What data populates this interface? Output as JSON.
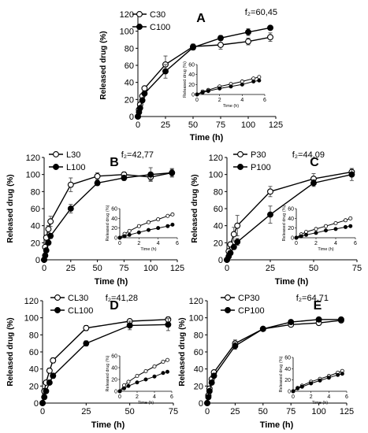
{
  "chart_data": [
    {
      "type": "line",
      "panel": "A",
      "f2": "f₂=60,45",
      "xlabel": "Time (h)",
      "ylabel": "Released drug (%)",
      "xlim": [
        0,
        125
      ],
      "ylim": [
        0,
        120
      ],
      "xticks": [
        "0",
        "25",
        "50",
        "75",
        "100",
        "125"
      ],
      "yticks": [
        "0",
        "20",
        "40",
        "60",
        "80",
        "100",
        "120"
      ],
      "legend": "top-left",
      "series": [
        {
          "name": "C30",
          "marker": "open",
          "x": [
            0,
            1,
            2,
            4,
            6,
            25,
            50,
            75,
            100,
            120
          ],
          "y": [
            0,
            8,
            14,
            24,
            33,
            61,
            82,
            84,
            88,
            93
          ],
          "err": [
            0,
            1,
            1,
            2,
            2,
            10,
            3,
            5,
            4,
            5
          ]
        },
        {
          "name": "C100",
          "marker": "filled",
          "x": [
            0,
            1,
            2,
            4,
            6,
            25,
            50,
            75,
            100,
            120
          ],
          "y": [
            0,
            5,
            10,
            19,
            27,
            53,
            81,
            92,
            99,
            104
          ],
          "err": [
            0,
            1,
            1,
            2,
            2,
            8,
            3,
            3,
            4,
            2
          ]
        }
      ],
      "inset": {
        "xlabel": "Time (h)",
        "ylabel": "Released drug (%)",
        "xlim": [
          0,
          6
        ],
        "ylim": [
          0,
          60
        ],
        "xticks": [
          "0",
          "2",
          "4",
          "6"
        ],
        "yticks": [
          "0",
          "20",
          "40",
          "60"
        ],
        "series": [
          {
            "name": "C30",
            "x": [
              0,
              0.5,
              1,
              2,
              3,
              4,
              5,
              5.5
            ],
            "y": [
              0,
              6,
              9,
              16,
              21,
              26,
              32,
              35
            ]
          },
          {
            "name": "C100",
            "x": [
              0,
              0.5,
              1,
              2,
              3,
              4,
              5,
              5.5
            ],
            "y": [
              0,
              4,
              7,
              12,
              16,
              20,
              26,
              28
            ]
          }
        ]
      }
    },
    {
      "type": "line",
      "panel": "B",
      "f2": "f₂=42,77",
      "xlabel": "Time (h)",
      "ylabel": "Released drug (%)",
      "xlim": [
        0,
        125
      ],
      "ylim": [
        0,
        120
      ],
      "xticks": [
        "0",
        "25",
        "50",
        "75",
        "100",
        "125"
      ],
      "yticks": [
        "0",
        "20",
        "40",
        "60",
        "80",
        "100",
        "120"
      ],
      "legend": "top-left",
      "series": [
        {
          "name": "L30",
          "marker": "open",
          "x": [
            0,
            1,
            2,
            4,
            6,
            25,
            50,
            75,
            100,
            120
          ],
          "y": [
            0,
            15,
            26,
            36,
            45,
            88,
            98,
            100,
            97,
            102
          ],
          "err": [
            0,
            2,
            3,
            4,
            6,
            8,
            4,
            3,
            4,
            4
          ]
        },
        {
          "name": "L100",
          "marker": "filled",
          "x": [
            0,
            1,
            2,
            4,
            6,
            25,
            50,
            75,
            100,
            120
          ],
          "y": [
            0,
            5,
            11,
            20,
            28,
            60,
            90,
            96,
            100,
            102
          ],
          "err": [
            0,
            1,
            1,
            2,
            3,
            5,
            3,
            3,
            8,
            5
          ]
        }
      ],
      "inset": {
        "xlabel": "Time (h)",
        "ylabel": "Released drug (%)",
        "xlim": [
          0,
          6
        ],
        "ylim": [
          0,
          60
        ],
        "xticks": [
          "0",
          "2",
          "4",
          "6"
        ],
        "yticks": [
          "0",
          "20",
          "40",
          "60"
        ],
        "series": [
          {
            "name": "L30",
            "x": [
              0,
              0.5,
              1,
              2,
              3,
              4,
              5,
              5.5
            ],
            "y": [
              0,
              8,
              14,
              24,
              32,
              38,
              45,
              48
            ]
          },
          {
            "name": "L100",
            "x": [
              0,
              0.5,
              1,
              2,
              3,
              4,
              5,
              5.5
            ],
            "y": [
              0,
              3,
              6,
              11,
              16,
              20,
              24,
              27
            ]
          }
        ]
      }
    },
    {
      "type": "line",
      "panel": "C",
      "f2": "f₂=44,09",
      "xlabel": "Time (h)",
      "ylabel": "Released drug (%)",
      "xlim": [
        0,
        75
      ],
      "ylim": [
        0,
        120
      ],
      "xticks": [
        "0",
        "25",
        "50",
        "75"
      ],
      "yticks": [
        "0",
        "20",
        "40",
        "60",
        "80",
        "100",
        "120"
      ],
      "legend": "top-left",
      "series": [
        {
          "name": "P30",
          "marker": "open",
          "x": [
            0,
            1,
            2,
            4,
            6,
            25,
            50,
            72
          ],
          "y": [
            0,
            10,
            18,
            30,
            40,
            80,
            95,
            103
          ],
          "err": [
            0,
            2,
            3,
            8,
            12,
            6,
            6,
            4
          ]
        },
        {
          "name": "P100",
          "marker": "filled",
          "x": [
            0,
            1,
            2,
            4,
            6,
            25,
            50,
            72
          ],
          "y": [
            0,
            4,
            8,
            15,
            21,
            53,
            90,
            100
          ],
          "err": [
            0,
            1,
            2,
            3,
            4,
            10,
            4,
            7
          ]
        }
      ],
      "inset": {
        "xlabel": "Time (h)",
        "ylabel": "Released drug (%)",
        "xlim": [
          0,
          6
        ],
        "ylim": [
          0,
          60
        ],
        "xticks": [
          "0",
          "2",
          "4",
          "6"
        ],
        "yticks": [
          "0",
          "20",
          "40",
          "60"
        ],
        "series": [
          {
            "name": "P30",
            "x": [
              0,
              0.5,
              1,
              2,
              3,
              4,
              5,
              5.5
            ],
            "y": [
              0,
              7,
              12,
              18,
              24,
              30,
              36,
              40
            ]
          },
          {
            "name": "P100",
            "x": [
              0,
              0.5,
              1,
              2,
              3,
              4,
              5,
              5.5
            ],
            "y": [
              0,
              3,
              6,
              10,
              15,
              18,
              22,
              24
            ]
          }
        ]
      }
    },
    {
      "type": "line",
      "panel": "D",
      "f2": "f₂=41,28",
      "xlabel": "Time (h)",
      "ylabel": "Released drug (%)",
      "xlim": [
        0,
        75
      ],
      "ylim": [
        0,
        120
      ],
      "xticks": [
        "0",
        "25",
        "50",
        "75"
      ],
      "yticks": [
        "0",
        "20",
        "40",
        "60",
        "80",
        "100",
        "120"
      ],
      "legend": "top-left",
      "series": [
        {
          "name": "CL30",
          "marker": "open",
          "x": [
            0,
            1,
            2,
            4,
            6,
            25,
            50,
            72
          ],
          "y": [
            0,
            14,
            24,
            38,
            50,
            88,
            96,
            98
          ],
          "err": [
            0,
            2,
            2,
            3,
            3,
            3,
            2,
            3
          ]
        },
        {
          "name": "CL100",
          "marker": "filled",
          "x": [
            0,
            1,
            2,
            4,
            6,
            25,
            50,
            72
          ],
          "y": [
            0,
            7,
            14,
            24,
            32,
            70,
            91,
            92
          ],
          "err": [
            0,
            1,
            2,
            2,
            3,
            3,
            5,
            7
          ]
        }
      ],
      "inset": {
        "xlabel": "Time (h)",
        "ylabel": "Released drug (%)",
        "xlim": [
          0,
          6
        ],
        "ylim": [
          0,
          60
        ],
        "xticks": [
          "0",
          "2",
          "4",
          "6"
        ],
        "yticks": [
          "0",
          "20",
          "40",
          "60"
        ],
        "series": [
          {
            "name": "CL30",
            "x": [
              0,
              0.5,
              1,
              2,
              3,
              4,
              5,
              5.5
            ],
            "y": [
              0,
              10,
              16,
              26,
              34,
              42,
              50,
              53
            ]
          },
          {
            "name": "CL100",
            "x": [
              0,
              0.5,
              1,
              2,
              3,
              4,
              5,
              5.5
            ],
            "y": [
              0,
              5,
              9,
              15,
              20,
              25,
              31,
              33
            ]
          }
        ]
      }
    },
    {
      "type": "line",
      "panel": "E",
      "f2": "f₂=64,71",
      "xlabel": "Time (h)",
      "ylabel": "Released drug (%)",
      "xlim": [
        0,
        125
      ],
      "ylim": [
        0,
        120
      ],
      "xticks": [
        "0",
        "25",
        "50",
        "75",
        "100",
        "125"
      ],
      "yticks": [
        "0",
        "20",
        "40",
        "60",
        "80",
        "100",
        "120"
      ],
      "legend": "top-left",
      "series": [
        {
          "name": "CP30",
          "marker": "open",
          "x": [
            0,
            1,
            2,
            4,
            6,
            25,
            50,
            75,
            100,
            120
          ],
          "y": [
            0,
            9,
            17,
            28,
            36,
            70,
            87,
            92,
            94,
            97
          ],
          "err": [
            0,
            1,
            1,
            2,
            2,
            4,
            2,
            2,
            2,
            2
          ]
        },
        {
          "name": "CP100",
          "marker": "filled",
          "x": [
            0,
            1,
            2,
            4,
            6,
            25,
            50,
            75,
            100,
            120
          ],
          "y": [
            0,
            7,
            14,
            24,
            32,
            67,
            87,
            95,
            98,
            98
          ],
          "err": [
            0,
            1,
            1,
            2,
            2,
            4,
            2,
            2,
            2,
            2
          ]
        }
      ],
      "inset": {
        "xlabel": "Time (h)",
        "ylabel": "Released drug (%)",
        "xlim": [
          0,
          6
        ],
        "ylim": [
          0,
          60
        ],
        "xticks": [
          "0",
          "2",
          "4",
          "6"
        ],
        "yticks": [
          "0",
          "20",
          "40",
          "60"
        ],
        "series": [
          {
            "name": "CP30",
            "x": [
              0,
              0.5,
              1,
              2,
              3,
              4,
              5,
              5.5
            ],
            "y": [
              0,
              6,
              10,
              17,
              22,
              27,
              33,
              36
            ]
          },
          {
            "name": "CP100",
            "x": [
              0,
              0.5,
              1,
              2,
              3,
              4,
              5,
              5.5
            ],
            "y": [
              0,
              5,
              8,
              14,
              19,
              24,
              29,
              31
            ]
          }
        ]
      }
    }
  ]
}
